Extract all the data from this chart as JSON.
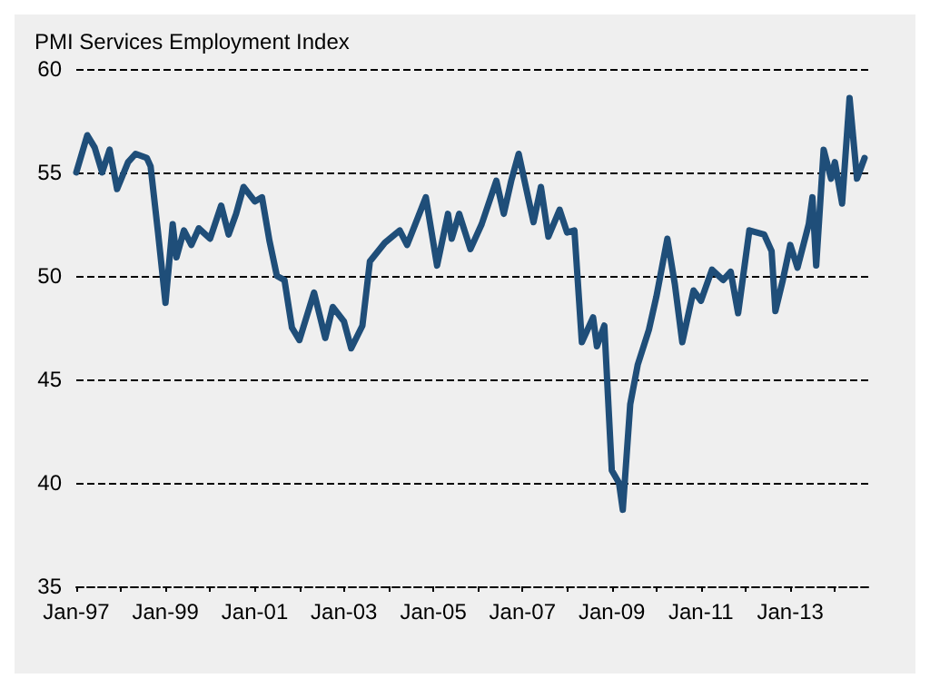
{
  "chart_data": {
    "type": "line",
    "title": "PMI Services Employment Index",
    "x": [
      "1997-01",
      "1997-04",
      "1997-06",
      "1997-08",
      "1997-10",
      "1997-12",
      "1998-03",
      "1998-05",
      "1998-08",
      "1998-09",
      "1998-11",
      "1999-01",
      "1999-03",
      "1999-04",
      "1999-06",
      "1999-08",
      "1999-10",
      "2000-01",
      "2000-04",
      "2000-06",
      "2000-08",
      "2000-10",
      "2001-01",
      "2001-03",
      "2001-05",
      "2001-07",
      "2001-09",
      "2001-11",
      "2002-01",
      "2002-05",
      "2002-08",
      "2002-10",
      "2003-01",
      "2003-03",
      "2003-06",
      "2003-08",
      "2003-12",
      "2004-04",
      "2004-06",
      "2004-11",
      "2005-02",
      "2005-05",
      "2005-06",
      "2005-08",
      "2005-11",
      "2006-02",
      "2006-06",
      "2006-08",
      "2006-10",
      "2006-12",
      "2007-04",
      "2007-06",
      "2007-08",
      "2007-11",
      "2008-01",
      "2008-03",
      "2008-05",
      "2008-08",
      "2008-09",
      "2008-11",
      "2009-01",
      "2009-03",
      "2009-04",
      "2009-06",
      "2009-08",
      "2009-11",
      "2010-01",
      "2010-04",
      "2010-06",
      "2010-08",
      "2010-11",
      "2011-01",
      "2011-04",
      "2011-07",
      "2011-09",
      "2011-11",
      "2012-02",
      "2012-06",
      "2012-08",
      "2012-09",
      "2012-11",
      "2013-01",
      "2013-03",
      "2013-06",
      "2013-07",
      "2013-08",
      "2013-10",
      "2013-12",
      "2014-01",
      "2014-03",
      "2014-05",
      "2014-07",
      "2014-09"
    ],
    "series": [
      {
        "color": "#1f4e79",
        "values": [
          55.0,
          56.8,
          56.2,
          55.0,
          56.1,
          54.2,
          55.5,
          55.9,
          55.7,
          55.3,
          52.1,
          48.7,
          52.5,
          50.9,
          52.2,
          51.5,
          52.3,
          51.8,
          53.4,
          52.0,
          53.0,
          54.3,
          53.6,
          53.8,
          51.7,
          50.0,
          49.8,
          47.5,
          46.9,
          49.2,
          47.0,
          48.5,
          47.8,
          46.5,
          47.6,
          50.7,
          51.6,
          52.2,
          51.5,
          53.8,
          50.5,
          53.0,
          51.8,
          53.0,
          51.3,
          52.5,
          54.6,
          53.0,
          54.6,
          55.9,
          52.6,
          54.3,
          51.9,
          53.2,
          52.1,
          52.2,
          46.8,
          48.0,
          46.6,
          47.6,
          40.6,
          40.0,
          38.7,
          43.8,
          45.7,
          47.4,
          49.0,
          51.8,
          49.6,
          46.8,
          49.3,
          48.8,
          50.3,
          49.8,
          50.2,
          48.2,
          52.2,
          52.0,
          51.2,
          48.3,
          49.8,
          51.5,
          50.4,
          52.5,
          53.8,
          50.5,
          56.1,
          54.7,
          55.5,
          53.5,
          58.6,
          54.7,
          55.7
        ]
      }
    ],
    "xlim": [
      "1997-01",
      "2014-10"
    ],
    "xticks": [
      {
        "value": "1997-01",
        "label": "Jan-97"
      },
      {
        "value": "1998-01",
        "label": null
      },
      {
        "value": "1999-01",
        "label": "Jan-99"
      },
      {
        "value": "2000-01",
        "label": null
      },
      {
        "value": "2001-01",
        "label": "Jan-01"
      },
      {
        "value": "2002-01",
        "label": null
      },
      {
        "value": "2003-01",
        "label": "Jan-03"
      },
      {
        "value": "2004-01",
        "label": null
      },
      {
        "value": "2005-01",
        "label": "Jan-05"
      },
      {
        "value": "2006-01",
        "label": null
      },
      {
        "value": "2007-01",
        "label": "Jan-07"
      },
      {
        "value": "2008-01",
        "label": null
      },
      {
        "value": "2009-01",
        "label": "Jan-09"
      },
      {
        "value": "2010-01",
        "label": null
      },
      {
        "value": "2011-01",
        "label": "Jan-11"
      },
      {
        "value": "2012-01",
        "label": null
      },
      {
        "value": "2013-01",
        "label": "Jan-13"
      },
      {
        "value": "2014-01",
        "label": null
      }
    ],
    "ylim": [
      35,
      60
    ],
    "yticks": [
      35,
      40,
      45,
      50,
      55,
      60
    ],
    "grid": "y",
    "marker": "none",
    "line_style": "solid"
  }
}
